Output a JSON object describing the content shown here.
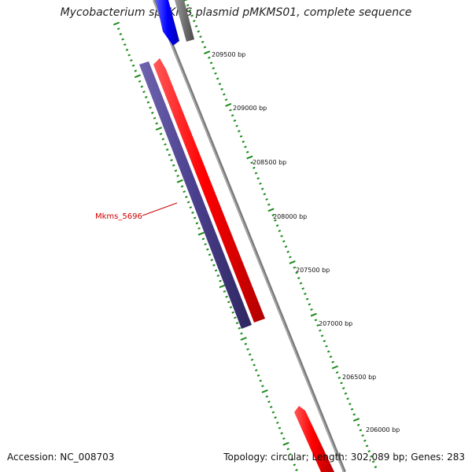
{
  "title": "Mycobacterium sp. KMS plasmid pMKMS01, complete sequence",
  "footer": {
    "accession_label": "Accession:",
    "accession": "NC_008703",
    "topology_label": "Topology:",
    "topology": "circular",
    "length_label": "Length:",
    "length": "302,089 bp",
    "genes_label": "Genes:",
    "genes": "283"
  },
  "ticks": [
    {
      "label": "209500 bp",
      "position": 209500
    },
    {
      "label": "209000 bp",
      "position": 209000
    },
    {
      "label": "208500 bp",
      "position": 208500
    },
    {
      "label": "208000 bp",
      "position": 208000
    },
    {
      "label": "207500 bp",
      "position": 207500
    },
    {
      "label": "207000 bp",
      "position": 207000
    },
    {
      "label": "206500 bp",
      "position": 206500
    },
    {
      "label": "206000 bp",
      "position": 206000
    }
  ],
  "gene_label": "Mkms_5696",
  "colors": {
    "forward_gene": "#ff0000",
    "reverse_gene": "#4a3f8c",
    "blue_gene": "#0000ff",
    "backbone": "#888888",
    "ticks": "#1a8a1a",
    "label": "#cc0000"
  }
}
